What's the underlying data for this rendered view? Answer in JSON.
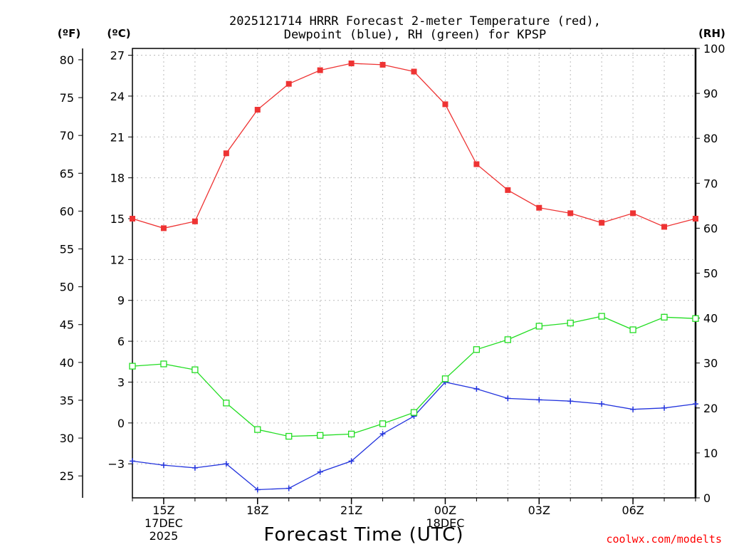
{
  "chart_data": {
    "type": "line",
    "title_line1": "2025121714 HRRR Forecast 2-meter Temperature (red),",
    "title_line2": "Dewpoint (blue), RH (green) for KPSP",
    "xlabel": "Forecast Time (UTC)",
    "credit": "coolwx.com/modelts",
    "units": {
      "fahrenheit": "(ºF)",
      "celsius": "(ºC)",
      "rh": "(RH)"
    },
    "x_hours": [
      14,
      15,
      16,
      17,
      18,
      19,
      20,
      21,
      22,
      23,
      24,
      25,
      26,
      27,
      28,
      29,
      30,
      31,
      32
    ],
    "x_ticks": [
      {
        "hour": 15,
        "lines": [
          "15Z",
          "17DEC",
          "2025"
        ]
      },
      {
        "hour": 18,
        "lines": [
          "18Z"
        ]
      },
      {
        "hour": 21,
        "lines": [
          "21Z"
        ]
      },
      {
        "hour": 24,
        "lines": [
          "00Z",
          "18DEC"
        ]
      },
      {
        "hour": 27,
        "lines": [
          "03Z"
        ]
      },
      {
        "hour": 30,
        "lines": [
          "06Z"
        ]
      }
    ],
    "celsius_axis": {
      "min": -5.5,
      "max": 27.5,
      "ticks": [
        "−3",
        "0",
        "3",
        "6",
        "9",
        "12",
        "15",
        "18",
        "21",
        "24",
        "27"
      ],
      "tick_values": [
        -3,
        0,
        3,
        6,
        9,
        12,
        15,
        18,
        21,
        24,
        27
      ]
    },
    "fahrenheit_axis": {
      "ticks": [
        "25",
        "30",
        "35",
        "40",
        "45",
        "50",
        "55",
        "60",
        "65",
        "70",
        "75",
        "80"
      ],
      "tick_values": [
        25,
        30,
        35,
        40,
        45,
        50,
        55,
        60,
        65,
        70,
        75,
        80
      ]
    },
    "rh_axis": {
      "min": 0,
      "max": 100,
      "ticks": [
        "0",
        "10",
        "20",
        "30",
        "40",
        "50",
        "60",
        "70",
        "80",
        "90",
        "100"
      ],
      "tick_values": [
        0,
        10,
        20,
        30,
        40,
        50,
        60,
        70,
        80,
        90,
        100
      ]
    },
    "series": [
      {
        "name": "Temperature",
        "color": "#ee3333",
        "marker": "filled-square",
        "axis": "celsius",
        "values": [
          15.0,
          14.3,
          14.8,
          19.8,
          23.0,
          24.9,
          25.9,
          26.4,
          26.3,
          25.8,
          23.4,
          19.0,
          17.1,
          15.8,
          15.4,
          14.7,
          15.4,
          14.4,
          15.0
        ]
      },
      {
        "name": "Dewpoint",
        "color": "#2233dd",
        "marker": "plus",
        "axis": "celsius",
        "values": [
          -2.8,
          -3.1,
          -3.3,
          -3.0,
          -4.9,
          -4.8,
          -3.6,
          -2.8,
          -0.8,
          0.5,
          3.0,
          2.5,
          1.8,
          1.7,
          1.6,
          1.4,
          1.0,
          1.1,
          1.4
        ]
      },
      {
        "name": "RH",
        "color": "#22dd22",
        "marker": "open-square",
        "axis": "rh",
        "values": [
          29.3,
          29.8,
          28.5,
          21.1,
          15.2,
          13.7,
          13.9,
          14.2,
          16.5,
          19.0,
          26.5,
          33.0,
          35.2,
          38.2,
          38.9,
          40.4,
          37.4,
          40.2,
          39.9
        ]
      }
    ]
  }
}
